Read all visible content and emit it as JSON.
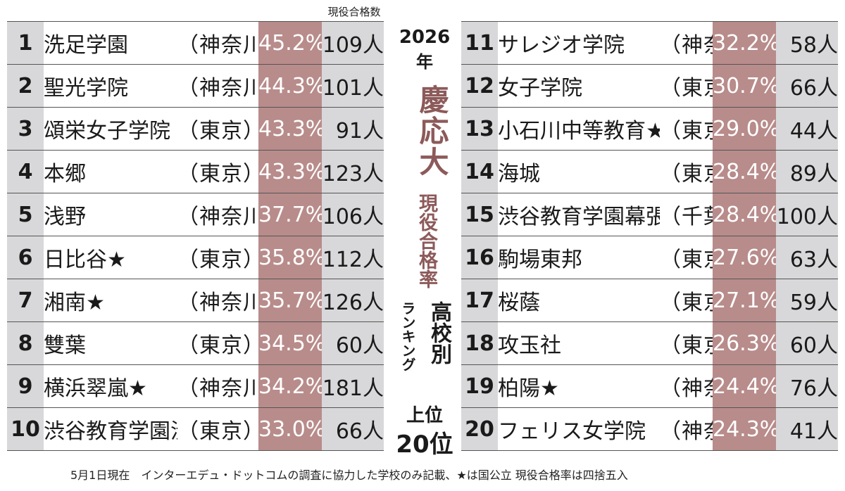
{
  "column_header": "現役合格数",
  "title": {
    "year": "2026",
    "nen": "年",
    "university": "慶応大",
    "subtitle": "現役合格率",
    "kokobetsu": "高校別",
    "ranking": "ランキング",
    "joui": "上位",
    "twenty": "20位"
  },
  "left_rows": [
    {
      "rank": "1",
      "name": "洗足学園",
      "pref": "（神奈川）",
      "rate": "45.2%",
      "count": "109人"
    },
    {
      "rank": "2",
      "name": "聖光学院",
      "pref": "（神奈川）",
      "rate": "44.3%",
      "count": "101人"
    },
    {
      "rank": "3",
      "name": "頌栄女子学院",
      "pref": "（東京）",
      "rate": "43.3%",
      "count": "91人"
    },
    {
      "rank": "4",
      "name": "本郷",
      "pref": "（東京）",
      "rate": "43.3%",
      "count": "123人"
    },
    {
      "rank": "5",
      "name": "浅野",
      "pref": "（神奈川）",
      "rate": "37.7%",
      "count": "106人"
    },
    {
      "rank": "6",
      "name": "日比谷★",
      "pref": "（東京）",
      "rate": "35.8%",
      "count": "112人"
    },
    {
      "rank": "7",
      "name": "湘南★",
      "pref": "（神奈川）",
      "rate": "35.7%",
      "count": "126人"
    },
    {
      "rank": "8",
      "name": "雙葉",
      "pref": "（東京）",
      "rate": "34.5%",
      "count": "60人"
    },
    {
      "rank": "9",
      "name": "横浜翠嵐★",
      "pref": "（神奈川）",
      "rate": "34.2%",
      "count": "181人"
    },
    {
      "rank": "10",
      "name": "渋谷教育学園渋谷",
      "pref": "（東京）",
      "rate": "33.0%",
      "count": "66人"
    }
  ],
  "right_rows": [
    {
      "rank": "11",
      "name": "サレジオ学院",
      "pref": "（神奈川）",
      "rate": "32.2%",
      "count": "58人"
    },
    {
      "rank": "12",
      "name": "女子学院",
      "pref": "（東京）",
      "rate": "30.7%",
      "count": "66人"
    },
    {
      "rank": "13",
      "name": "小石川中等教育★",
      "pref": "（東京）",
      "rate": "29.0%",
      "count": "44人"
    },
    {
      "rank": "14",
      "name": "海城",
      "pref": "（東京）",
      "rate": "28.4%",
      "count": "89人"
    },
    {
      "rank": "15",
      "name": "渋谷教育学園幕張",
      "pref": "（千葉）",
      "rate": "28.4%",
      "count": "100人"
    },
    {
      "rank": "16",
      "name": "駒場東邦",
      "pref": "（東京）",
      "rate": "27.6%",
      "count": "63人"
    },
    {
      "rank": "17",
      "name": "桜蔭",
      "pref": "（東京）",
      "rate": "27.1%",
      "count": "59人"
    },
    {
      "rank": "18",
      "name": "攻玉社",
      "pref": "（東京）",
      "rate": "26.3%",
      "count": "60人"
    },
    {
      "rank": "19",
      "name": "柏陽★",
      "pref": "（神奈川）",
      "rate": "24.4%",
      "count": "76人"
    },
    {
      "rank": "20",
      "name": "フェリス女学院",
      "pref": "（神奈川）",
      "rate": "24.3%",
      "count": "41人"
    }
  ],
  "footnote": "5月1日現在　インターエデュ・ドットコムの調査に協力した学校のみ記載、★は国公立 現役合格率は四捨五入",
  "colors": {
    "rank_bg": "#d8d8da",
    "rate_bg": "#b88c8b",
    "title_accent": "#8c5a5a"
  }
}
